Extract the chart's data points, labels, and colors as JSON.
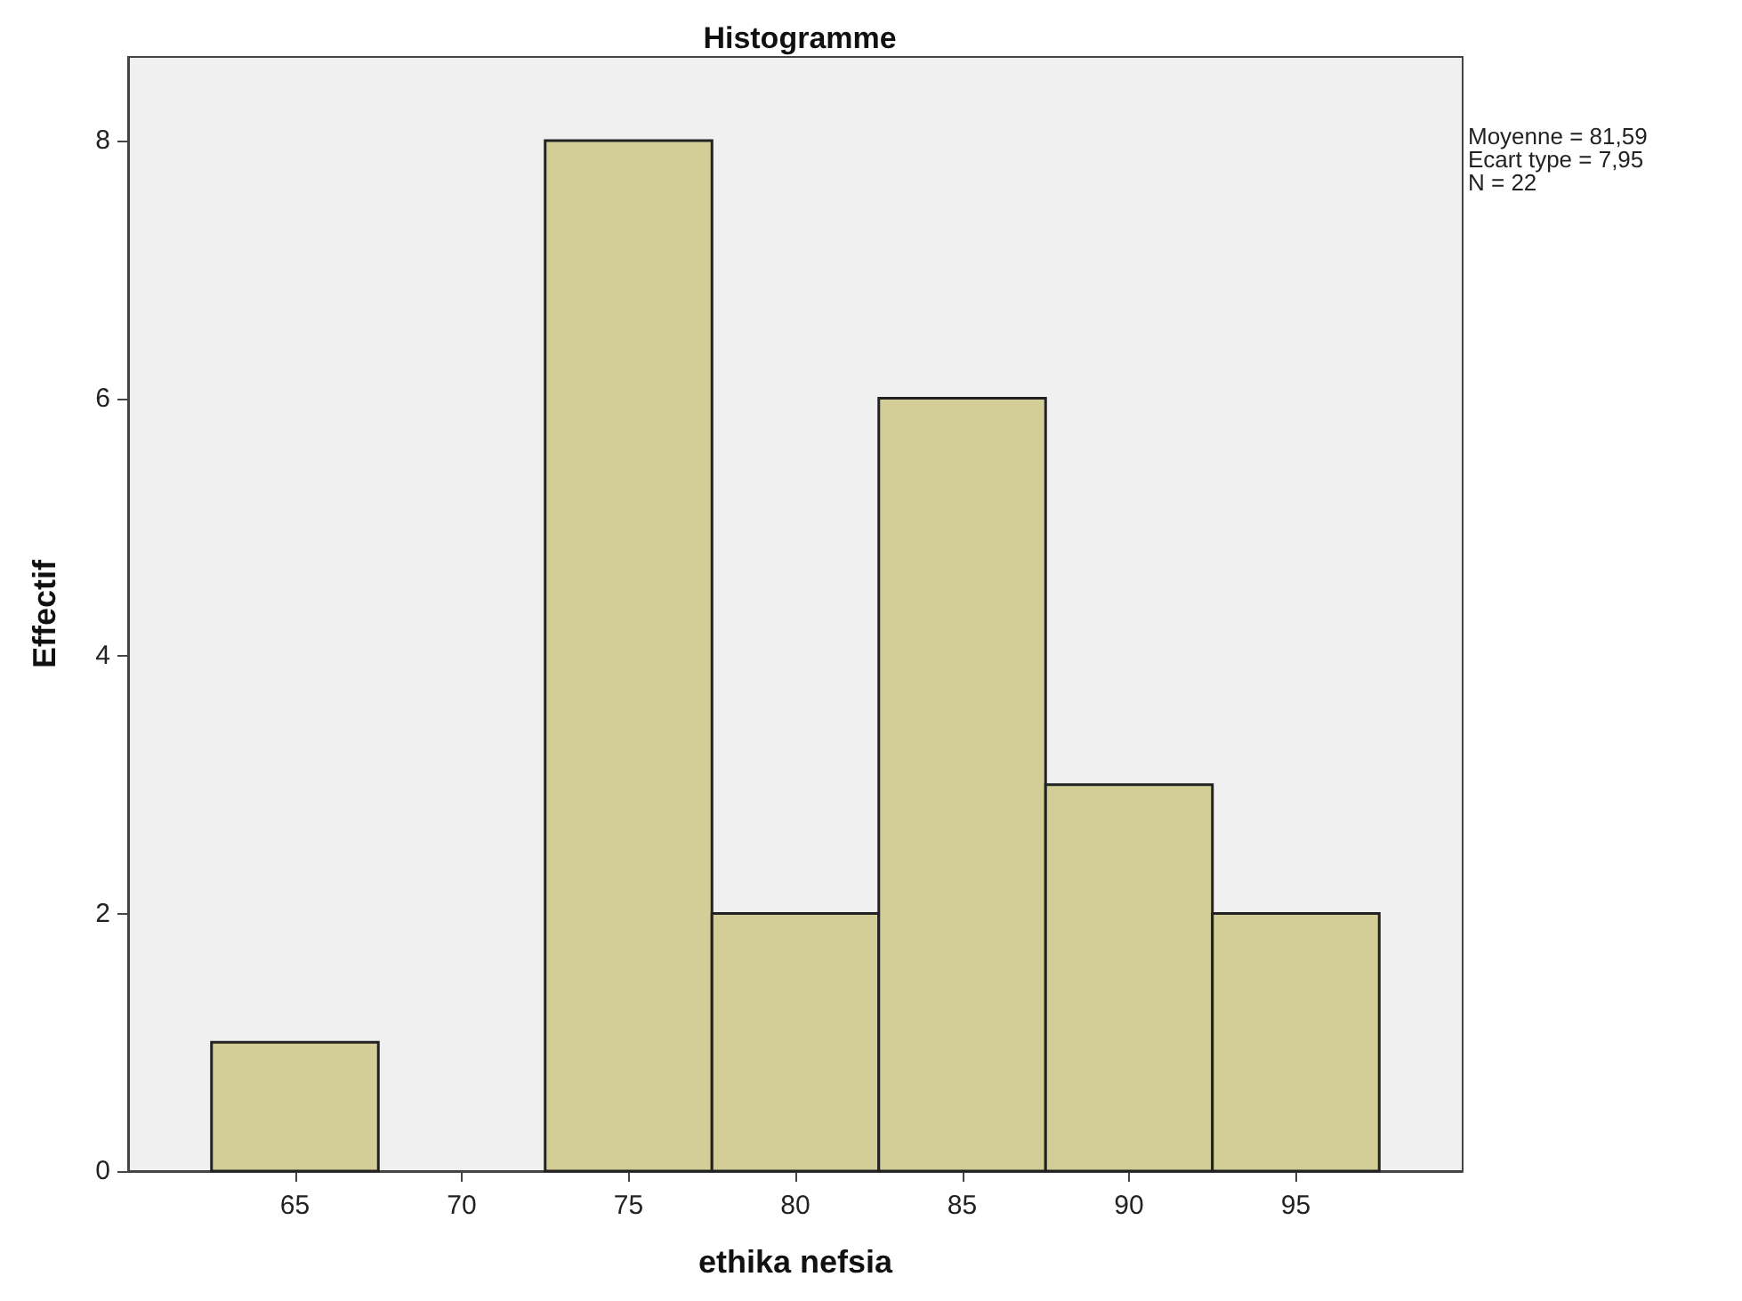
{
  "chart_data": {
    "type": "histogram",
    "title": "Histogramme",
    "xlabel": "ethika nefsia",
    "ylabel": "Effectif",
    "bins": [
      62.5,
      67.5,
      72.5,
      77.5,
      82.5,
      87.5,
      92.5,
      97.5
    ],
    "values": [
      1,
      0,
      8,
      2,
      6,
      3,
      2
    ],
    "color": "#d3ce97",
    "xlim": [
      60,
      100
    ],
    "xticks": [
      65,
      70,
      75,
      80,
      85,
      90,
      95
    ],
    "ylim": [
      0,
      8.65
    ],
    "yticks": [
      0,
      2,
      4,
      6,
      8
    ],
    "grid": false,
    "annotations": [
      "Moyenne = 81,59",
      "Ecart type = 7,95",
      "N = 22"
    ]
  }
}
